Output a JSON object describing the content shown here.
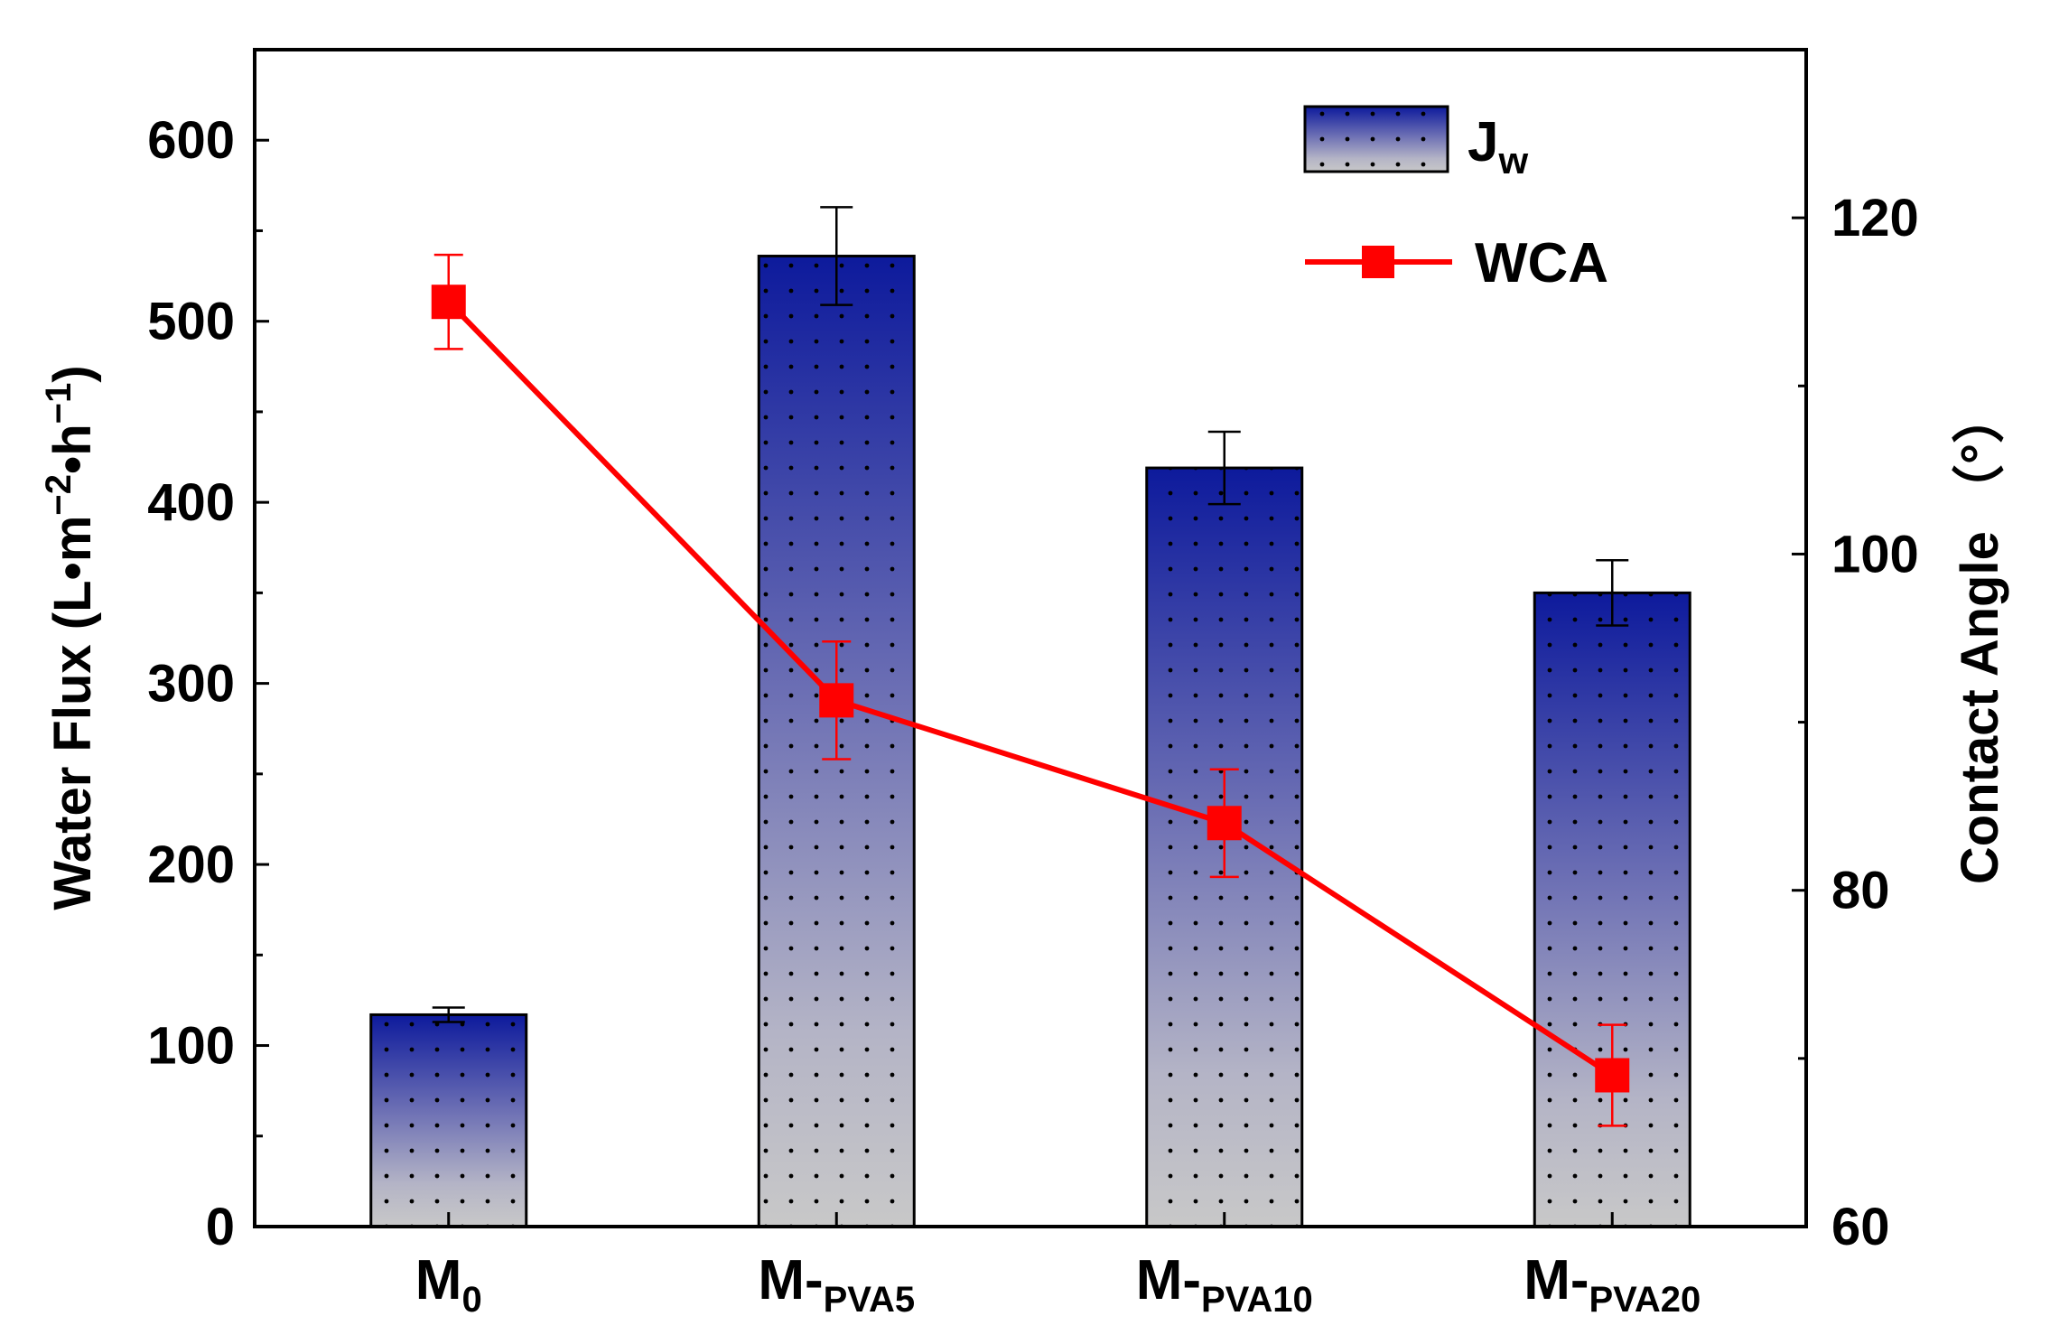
{
  "chart_data": {
    "type": "bar",
    "categories": [
      {
        "base": "M",
        "sub": "0"
      },
      {
        "base": "M-",
        "sub": "PVA5"
      },
      {
        "base": "M-",
        "sub": "PVA10"
      },
      {
        "base": "M-",
        "sub": "PVA20"
      }
    ],
    "series": [
      {
        "name": "Jw",
        "legend_base": "J",
        "legend_sub": "w",
        "type": "bar",
        "axis": "left",
        "values": [
          117,
          536,
          419,
          350
        ],
        "errors": [
          4,
          27,
          20,
          18
        ]
      },
      {
        "name": "WCA",
        "type": "line",
        "axis": "right",
        "values": [
          115,
          91.3,
          84,
          69
        ],
        "errors": [
          2.8,
          3.5,
          3.2,
          3.0
        ]
      }
    ],
    "left_axis": {
      "title": "Water Flux (L•m",
      "title_sup1": "−2",
      "title_mid": "•h",
      "title_sup2": "−1",
      "title_end": ")",
      "ylim": [
        0,
        650
      ],
      "ticks": [
        "0",
        "100",
        "200",
        "300",
        "400",
        "500",
        "600"
      ]
    },
    "right_axis": {
      "title": "Contact Angle （°）",
      "ylim": [
        60,
        130
      ],
      "ticks": [
        "60",
        "80",
        "100",
        "120"
      ]
    },
    "colors": {
      "bar_top": "#0d1a9c",
      "bar_bottom": "#c8c8c8",
      "line": "#ff0000",
      "axis": "#000000"
    },
    "legend_position": "top-right"
  }
}
